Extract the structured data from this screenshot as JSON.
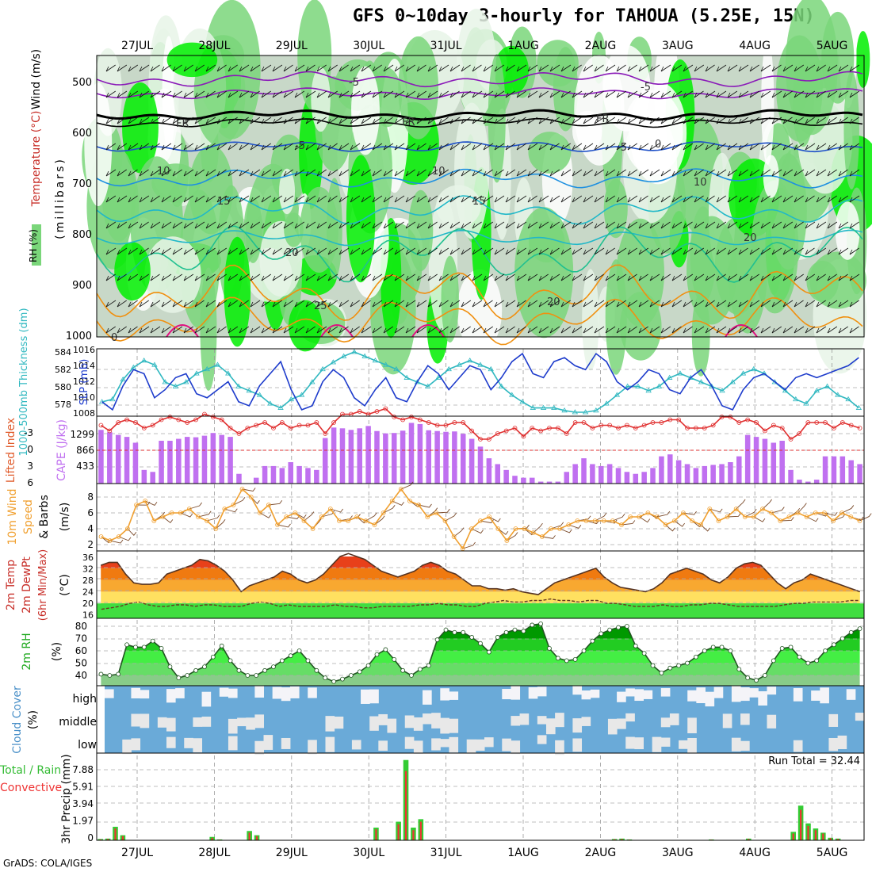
{
  "title": "GFS 0~10day 3-hourly for TAHOUA (5.25E, 15N)",
  "footer": "GrADS: COLA/IGES",
  "dates": [
    "27JUL",
    "28JUL",
    "29JUL",
    "30JUL",
    "31JUL",
    "1AUG",
    "2AUG",
    "3AUG",
    "4AUG",
    "5AUG"
  ],
  "colors": {
    "rh_light": "#e8f4e8",
    "rh_mid": "#c8d8c8",
    "rh_green": "#7ad67a",
    "rh_bright": "#00ee00",
    "temp_purple": "#8a1ab8",
    "temp_black": "#000000",
    "temp_blue": "#1e50c8",
    "temp_lblue": "#1e90e0",
    "temp_cyan": "#20b8c8",
    "temp_teal": "#20c090",
    "temp_orange": "#f09010",
    "temp_red": "#e01080",
    "cape_bar": "#c070f0",
    "li_line": "#e03030",
    "wind_speed": "#f0a030",
    "barb": "#7a4a2a",
    "precip_total": "#33cc33",
    "precip_conv": "#ee3333",
    "cloud": "#6aaad8",
    "cloud_clear": "#e8e8e8",
    "slp_line": "#1e3ccc",
    "thick_line": "#30b8c0"
  },
  "panels": {
    "upper": {
      "ylabel_wind": "Wind (m/s)",
      "ylabel_temp": "Temperature (°C)",
      "ylabel_rh": "RH (%)",
      "ylabel_units": "(millibars)",
      "levels": [
        500,
        600,
        700,
        800,
        900,
        1000
      ],
      "contour_labels": [
        "-5",
        "-5",
        "FR",
        "FR",
        "FR",
        "-5",
        "-5",
        "0",
        "10",
        "10",
        "10",
        "15",
        "15",
        "20",
        "20",
        "20",
        "25",
        "0"
      ]
    },
    "thickness": {
      "ylabel_thick": "1000-500mb Thickness (dm)",
      "ylabel_slp": "SLP (mb)",
      "thick_ticks": [
        "584",
        "582",
        "580",
        "578"
      ],
      "slp_ticks": [
        "1016",
        "1014",
        "1012",
        "1010",
        "1008"
      ]
    },
    "cape": {
      "ylabel_li": "Lifted Index",
      "ylabel_cape": "CAPE (J/kg)",
      "li_ticks": [
        "-3",
        "0",
        "3",
        "6"
      ],
      "cape_ticks": [
        "1299",
        "866",
        "433"
      ]
    },
    "wind": {
      "ylabel1": "10m Wind",
      "ylabel2": "Speed",
      "ylabel3": "& Barbs",
      "ylabel_units": "(m/s)",
      "ticks": [
        "8",
        "6",
        "4",
        "2"
      ]
    },
    "temp": {
      "ylabel1": "2m Temp",
      "ylabel2": "2m DewPt",
      "ylabel3": "(6hr Min/Max)",
      "ylabel_units": "(°C)",
      "ticks": [
        "36",
        "32",
        "28",
        "24",
        "20",
        "16"
      ]
    },
    "rh": {
      "ylabel": "2m RH",
      "ylabel_units": "(%)",
      "ticks": [
        "80",
        "70",
        "60",
        "50",
        "40"
      ]
    },
    "cloud": {
      "ylabel": "Cloud Cover",
      "ylabel_units": "(%)",
      "levels": [
        "high",
        "middle",
        "low"
      ]
    },
    "precip": {
      "ylabel1": "3hr Precip (mm)",
      "ylabel_total": "Total / Rain",
      "ylabel_conv": "Convective",
      "ticks": [
        "7.88",
        "5.91",
        "3.94",
        "1.97",
        "0"
      ],
      "run_total": "Run Total = 32.44"
    }
  },
  "chart_data": [
    {
      "type": "line",
      "name": "thickness_slp",
      "series": [
        {
          "name": "1000-500mb Thickness (dm)",
          "values": [
            578.2,
            578.5,
            580.8,
            582.2,
            583.0,
            582.5,
            580.5,
            580.0,
            580.5,
            581.5,
            582.0,
            582.5,
            581.5,
            580.0,
            579.5,
            579.0,
            578.0,
            577.5,
            578.5,
            579.0,
            580.5,
            582.0,
            582.8,
            583.5,
            584.0,
            583.5,
            583.0,
            582.5,
            582.0,
            581.0,
            580.5,
            580.0,
            581.0,
            582.0,
            582.5,
            583.0,
            582.5,
            582.0,
            580.0,
            579.0,
            578.2,
            577.5,
            577.5,
            577.5,
            577.2,
            577.0,
            577.0,
            577.2,
            578.0,
            579.0,
            580.0,
            580.0,
            579.5,
            580.0,
            581.0,
            581.5,
            581.0,
            580.5,
            580.0,
            579.5,
            580.5,
            581.5,
            582.0,
            581.5,
            580.5,
            579.5,
            578.5,
            578.0,
            579.5,
            580.0,
            579.0,
            578.5,
            577.5
          ]
        },
        {
          "name": "SLP (mb)",
          "values": [
            1009.5,
            1008.5,
            1011.5,
            1013.5,
            1013.0,
            1010.0,
            1011.0,
            1012.5,
            1013.0,
            1010.5,
            1010.0,
            1011.0,
            1012.0,
            1009.5,
            1009.0,
            1011.5,
            1013.0,
            1014.5,
            1011.0,
            1008.5,
            1009.0,
            1012.0,
            1013.5,
            1012.5,
            1010.0,
            1009.0,
            1011.0,
            1012.5,
            1010.0,
            1009.5,
            1012.0,
            1014.0,
            1013.0,
            1011.0,
            1012.5,
            1014.0,
            1013.5,
            1011.0,
            1012.5,
            1014.5,
            1015.5,
            1013.0,
            1012.5,
            1014.5,
            1015.0,
            1014.0,
            1013.5,
            1015.5,
            1014.5,
            1012.0,
            1011.0,
            1012.0,
            1013.5,
            1013.0,
            1011.0,
            1010.5,
            1012.5,
            1013.5,
            1011.5,
            1009.0,
            1008.5,
            1011.0,
            1012.5,
            1013.0,
            1012.0,
            1011.0,
            1012.5,
            1013.0,
            1012.5,
            1013.0,
            1013.5,
            1014.0,
            1015.0
          ]
        }
      ]
    },
    {
      "type": "bar",
      "name": "cape_li",
      "series": [
        {
          "name": "CAPE (J/kg)",
          "values": [
            1380,
            1320,
            1250,
            1200,
            1050,
            350,
            300,
            1100,
            1100,
            1150,
            1200,
            1190,
            1230,
            1300,
            1250,
            1200,
            250,
            0,
            150,
            450,
            450,
            400,
            550,
            450,
            400,
            350,
            1170,
            1440,
            1420,
            1380,
            1420,
            1480,
            1350,
            1290,
            1300,
            1360,
            1560,
            1530,
            1370,
            1350,
            1330,
            1340,
            1280,
            1150,
            950,
            650,
            500,
            350,
            200,
            150,
            150,
            50,
            50,
            50,
            300,
            500,
            650,
            500,
            450,
            500,
            400,
            300,
            250,
            300,
            400,
            700,
            750,
            600,
            500,
            400,
            450,
            480,
            500,
            550,
            700,
            1250,
            1200,
            1150,
            1050,
            1100,
            350,
            100,
            50,
            100,
            700,
            700,
            700,
            600,
            500
          ]
        },
        {
          "name": "Lifted Index",
          "values": [
            -4.5,
            -3.5,
            -5,
            -5.5,
            -5,
            -4,
            -4.5,
            -5.5,
            -6,
            -5.5,
            -5,
            -5.5,
            -6.5,
            -6,
            -5.5,
            -4,
            -3,
            -4,
            -4.5,
            -5,
            -4,
            -5,
            -4,
            -4.5,
            -4.5,
            -5,
            -3,
            -5,
            -6.5,
            -6.5,
            -7,
            -6.5,
            -7,
            -7.5,
            -6,
            -5.5,
            -6,
            -5.5,
            -5,
            -4.5,
            -4.5,
            -5,
            -5,
            -3.5,
            -2,
            -2,
            -3,
            -3.5,
            -4,
            -2.5,
            -4,
            -3.5,
            -4,
            -4,
            -3,
            -5,
            -5,
            -4,
            -4.5,
            -4.5,
            -4,
            -4.5,
            -4,
            -4.5,
            -5,
            -5,
            -5.5,
            -5.5,
            -4,
            -4,
            -4,
            -4.5,
            -6,
            -6,
            -5,
            -5.5,
            -5,
            -3.5,
            -4.5,
            -4,
            -2,
            -3,
            -5,
            -5,
            -5,
            -4,
            -5,
            -4.5,
            -4
          ]
        }
      ]
    },
    {
      "type": "line",
      "name": "wind10m",
      "series": [
        {
          "name": "10m Wind Speed",
          "values": [
            3,
            2.5,
            3,
            4,
            7,
            7.5,
            5,
            5.5,
            6,
            6,
            6.5,
            5.5,
            5,
            4,
            6.5,
            7,
            9,
            8,
            6,
            7,
            4.5,
            5.5,
            6,
            5,
            4,
            5.5,
            6.5,
            5,
            5,
            5.5,
            5,
            4.5,
            6,
            7.5,
            9,
            7.5,
            7,
            5.5,
            6,
            5,
            3,
            1.5,
            4,
            5,
            5.5,
            4,
            2.5,
            4,
            4,
            3.5,
            3,
            4,
            4,
            4.5,
            5,
            5,
            5,
            5,
            5,
            4.5,
            5.5,
            5.5,
            6,
            5.5,
            4.5,
            5,
            6,
            5,
            4.5,
            6.5,
            5,
            5.5,
            6.5,
            5.5,
            5.5,
            6.5,
            6,
            5,
            5.5,
            6,
            5.5,
            6,
            6,
            5,
            6,
            5.5,
            5
          ]
        }
      ]
    },
    {
      "type": "area",
      "name": "temp2m",
      "series": [
        {
          "name": "2m Temp",
          "values": [
            33,
            34,
            34,
            30,
            27,
            26.5,
            26.5,
            27,
            30,
            31,
            32,
            33,
            35,
            34.5,
            33,
            31,
            28,
            24,
            26,
            27,
            28,
            29,
            31,
            30,
            28,
            27,
            28,
            30,
            33,
            36,
            37,
            36,
            35,
            33,
            31,
            30,
            29,
            30,
            31,
            33,
            34,
            33,
            31,
            30,
            28,
            26,
            26,
            25,
            25,
            24.5,
            25,
            24,
            23.5,
            23,
            25,
            27,
            28,
            29,
            30,
            31,
            32,
            29,
            27,
            25.5,
            25,
            24.5,
            24,
            25,
            27,
            30,
            31,
            32,
            31,
            30,
            28,
            27,
            29,
            32,
            33.5,
            34,
            33,
            30,
            27,
            25,
            27,
            28,
            30,
            29,
            28,
            27,
            26,
            25,
            24
          ]
        },
        {
          "name": "2m DewPt",
          "values": [
            18,
            18.5,
            19,
            20,
            20.5,
            19.5,
            19,
            19,
            19.5,
            19.5,
            19,
            19.5,
            19.5,
            19,
            19,
            19,
            20,
            20.5,
            20,
            19,
            19.5,
            19,
            19,
            19,
            19,
            19.5,
            19,
            19,
            18.5,
            18.5,
            19,
            19,
            19,
            19,
            19.5,
            19.5,
            20,
            19.5,
            19.5,
            19,
            19,
            20,
            20.5,
            21,
            20.5,
            20.5,
            21,
            21,
            21.5,
            21,
            21,
            20.5,
            21,
            21,
            20,
            20,
            19.5,
            19,
            19,
            19,
            19.5,
            19,
            19,
            19.5,
            19.5,
            20,
            20,
            19.5,
            19,
            19,
            19,
            19,
            19,
            19.5,
            20,
            20,
            20.5,
            20.5,
            20.5,
            20.5,
            21,
            21
          ]
        }
      ]
    },
    {
      "type": "area",
      "name": "rh2m",
      "series": [
        {
          "name": "2m RH",
          "values": [
            41,
            40,
            41,
            65,
            63,
            63,
            68,
            62,
            47,
            38,
            40,
            44,
            47,
            55,
            64,
            52,
            44,
            40,
            40,
            44,
            47,
            52,
            56,
            60,
            52,
            44,
            38,
            35,
            37,
            40,
            43,
            48,
            57,
            61,
            53,
            44,
            40,
            45,
            48,
            69,
            77,
            75,
            75,
            71,
            66,
            59,
            71,
            75,
            77,
            76,
            81,
            82,
            62,
            54,
            52,
            53,
            60,
            68,
            74,
            77,
            79,
            80,
            64,
            58,
            48,
            42,
            46,
            48,
            50,
            55,
            60,
            63,
            63,
            60,
            45,
            38,
            36,
            40,
            52,
            62,
            63,
            55,
            50,
            52,
            60,
            65,
            70,
            75,
            78
          ]
        }
      ]
    },
    {
      "type": "bar",
      "name": "precip3hr",
      "series": [
        {
          "name": "Total / Rain",
          "values": [
            0.15,
            0.2,
            1.6,
            0.6,
            0,
            0,
            0,
            0,
            0,
            0,
            0,
            0,
            0,
            0,
            0,
            0.4,
            0.1,
            0,
            0,
            0,
            1.1,
            0.6,
            0,
            0,
            0,
            0,
            0,
            0,
            0,
            0,
            0,
            0,
            0,
            0,
            0,
            0,
            0,
            1.5,
            0,
            0,
            2.2,
            9.5,
            1.5,
            2.5,
            0,
            0,
            0,
            0,
            0,
            0,
            0,
            0,
            0,
            0,
            0,
            0,
            0,
            0,
            0,
            0,
            0,
            0,
            0,
            0,
            0,
            0,
            0,
            0,
            0,
            0.15,
            0.2,
            0.1,
            0,
            0,
            0,
            0,
            0,
            0,
            0,
            0,
            0,
            0,
            0.1,
            0,
            0,
            0,
            0,
            0.2,
            0,
            0,
            0,
            0,
            0,
            1,
            4.1,
            2,
            1.4,
            0.9,
            0.3,
            0.2,
            0,
            0,
            0
          ]
        },
        {
          "name": "Convective",
          "values": [
            0.1,
            0.15,
            1.4,
            0.5,
            0,
            0,
            0,
            0,
            0,
            0,
            0,
            0,
            0,
            0,
            0,
            0.3,
            0.08,
            0,
            0,
            0,
            0.9,
            0.5,
            0,
            0,
            0,
            0,
            0,
            0,
            0,
            0,
            0,
            0,
            0,
            0,
            0,
            0,
            0,
            1.3,
            0,
            0,
            1.9,
            8.2,
            1.2,
            2.2,
            0,
            0,
            0,
            0,
            0,
            0,
            0,
            0,
            0,
            0,
            0,
            0,
            0,
            0,
            0,
            0,
            0,
            0,
            0,
            0,
            0,
            0,
            0,
            0,
            0,
            0.12,
            0.15,
            0.08,
            0,
            0,
            0,
            0,
            0,
            0,
            0,
            0,
            0,
            0,
            0.08,
            0,
            0,
            0,
            0,
            0.15,
            0,
            0,
            0,
            0,
            0,
            0.8,
            3.6,
            1.7,
            1.2,
            0.8,
            0.25,
            0.15,
            0,
            0,
            0
          ]
        }
      ]
    }
  ]
}
